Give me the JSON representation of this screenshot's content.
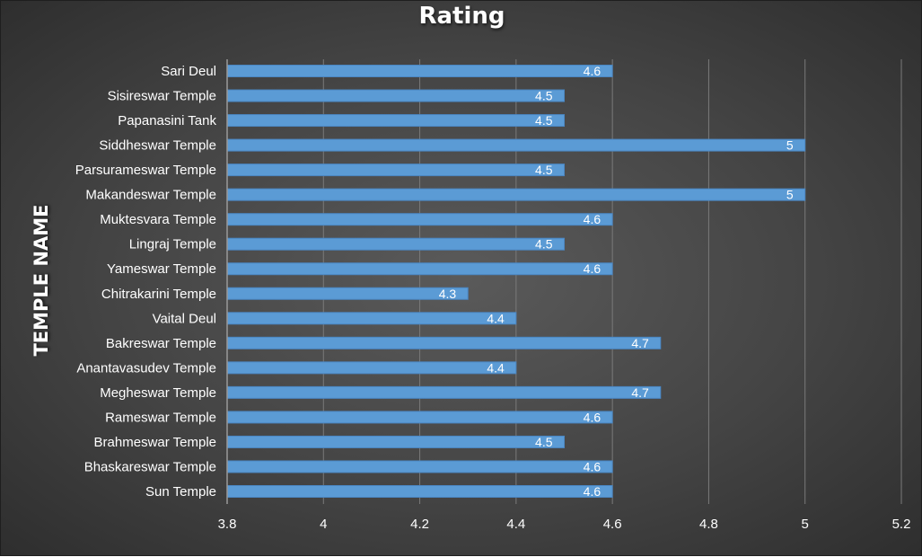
{
  "chart_data": {
    "type": "bar",
    "orientation": "horizontal",
    "title": "Rating",
    "ylabel": "TEMPLE NAME",
    "xlabel": "",
    "categories": [
      "Sun Temple",
      "Bhaskareswar Temple",
      "Brahmeswar Temple",
      "Rameswar Temple",
      "Megheswar Temple",
      "Anantavasudev Temple",
      "Bakreswar Temple",
      "Vaital Deul",
      "Chitrakarini Temple",
      "Yameswar Temple",
      "Lingraj Temple",
      "Muktesvara Temple",
      "Makandeswar Temple",
      "Parsurameswar Temple",
      "Siddheswar Temple",
      "Papanasini Tank",
      "Sisireswar Temple",
      "Sari Deul"
    ],
    "values": [
      4.6,
      4.6,
      4.5,
      4.6,
      4.7,
      4.4,
      4.7,
      4.4,
      4.3,
      4.6,
      4.5,
      4.6,
      5,
      4.5,
      5,
      4.5,
      4.5,
      4.6
    ],
    "data_labels": [
      "4.6",
      "4.6",
      "4.5",
      "4.6",
      "4.7",
      "4.4",
      "4.7",
      "4.4",
      "4.3",
      "4.6",
      "4.5",
      "4.6",
      "5",
      "4.5",
      "5",
      "4.5",
      "4.5",
      "4.6"
    ],
    "xlim": [
      3.8,
      5.2
    ],
    "xticks": [
      "3.8",
      "4",
      "4.2",
      "4.4",
      "4.6",
      "4.8",
      "5",
      "5.2"
    ],
    "grid": true,
    "legend": "none",
    "colors": {
      "bar": "#5b9bd5",
      "bar_edge": "#4a86c2",
      "background": "#404040",
      "gridline": "#7a7a7a",
      "text": "#ffffff"
    }
  }
}
